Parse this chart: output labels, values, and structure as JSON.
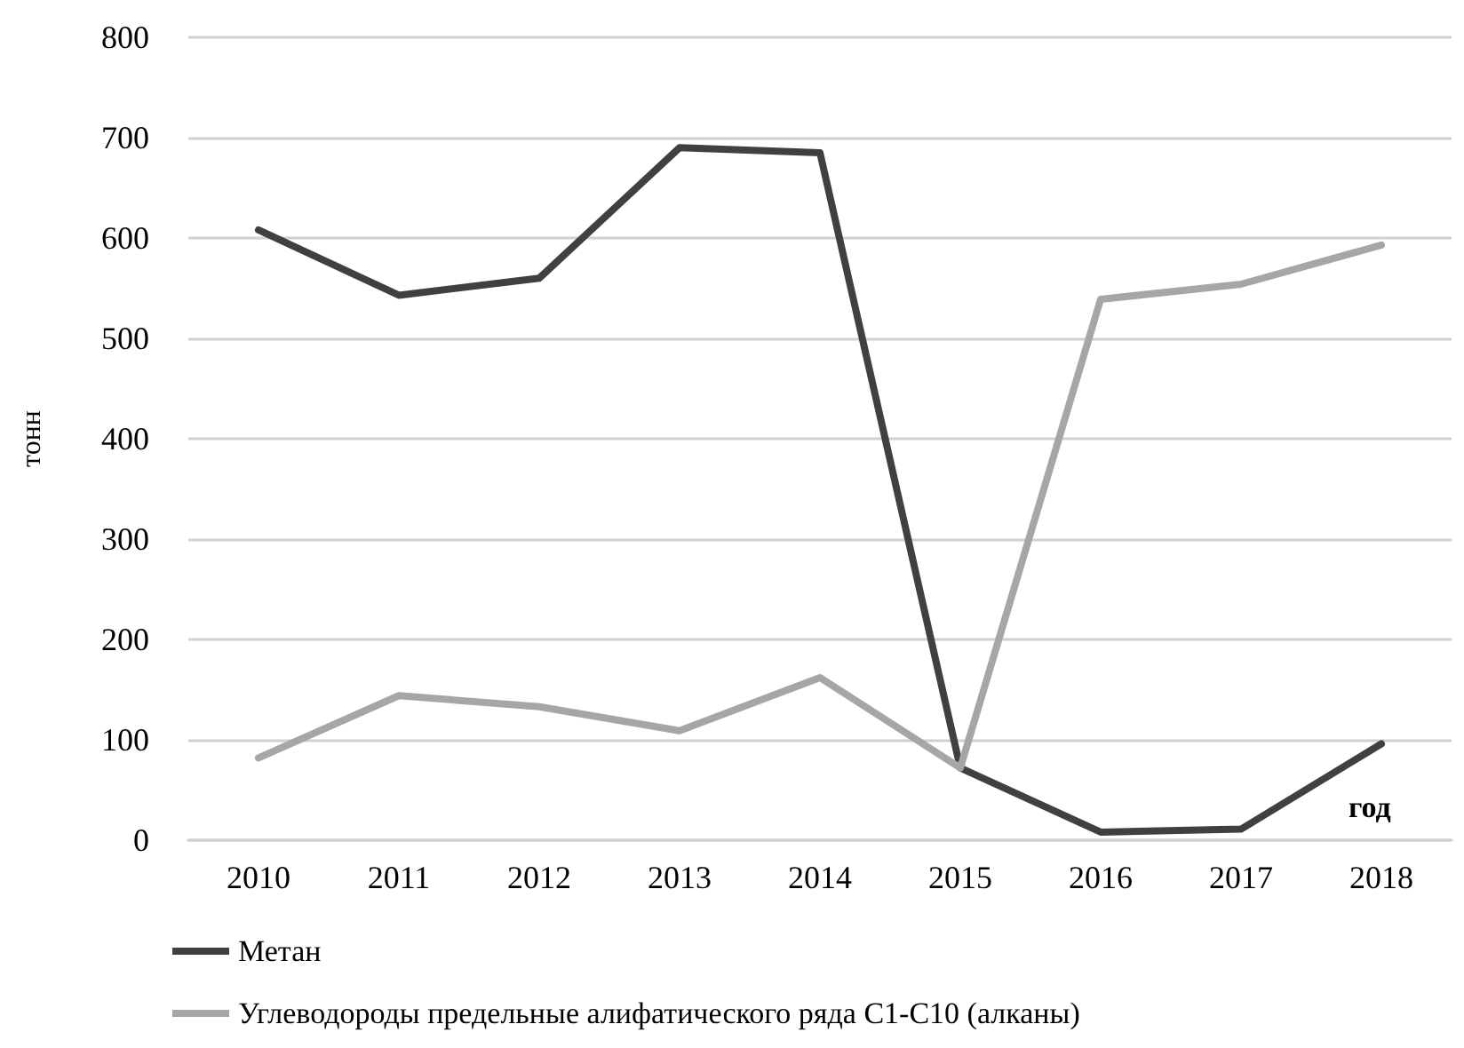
{
  "chart_data": {
    "type": "line",
    "xlabel": "год",
    "ylabel": "тонн",
    "categories": [
      "2010",
      "2011",
      "2012",
      "2013",
      "2014",
      "2015",
      "2016",
      "2017",
      "2018"
    ],
    "series": [
      {
        "name": "Метан",
        "color": "#404040",
        "values": [
          608,
          543,
          560,
          690,
          685,
          72,
          8,
          11,
          96
        ]
      },
      {
        "name": "Углеводороды предельные алифатического ряда С1-С10 (алканы)",
        "color": "#a6a6a6",
        "values": [
          82,
          144,
          133,
          109,
          162,
          72,
          539,
          554,
          593
        ]
      }
    ],
    "ylim": [
      0,
      800
    ],
    "yticks": [
      0,
      100,
      200,
      300,
      400,
      500,
      600,
      700,
      800
    ],
    "grid": "y",
    "legend": "bottom",
    "marker": "none",
    "line_style": "solid"
  }
}
